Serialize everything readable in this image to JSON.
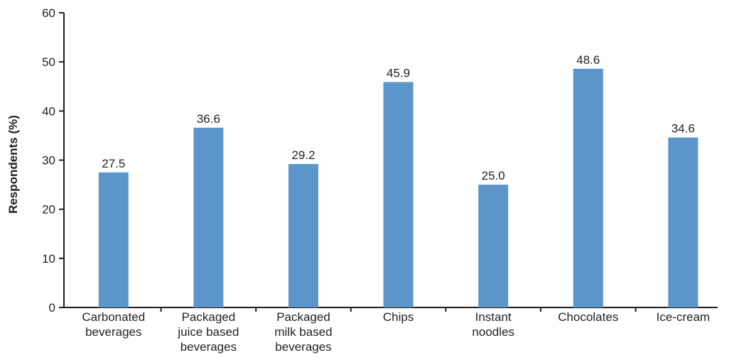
{
  "chart_data": {
    "type": "bar",
    "title": "",
    "xlabel": "",
    "ylabel": "Respondents (%)",
    "ylim": [
      0,
      60
    ],
    "yticks": [
      0,
      10,
      20,
      30,
      40,
      50,
      60
    ],
    "grid": false,
    "bar_color": "#5b95c9",
    "categories": [
      [
        "Carbonated",
        "beverages"
      ],
      [
        "Packaged",
        "juice based",
        "beverages"
      ],
      [
        "Packaged",
        "milk based",
        "beverages"
      ],
      [
        "Chips"
      ],
      [
        "Instant",
        "noodles"
      ],
      [
        "Chocolates"
      ],
      [
        "Ice-cream"
      ]
    ],
    "values": [
      27.5,
      36.6,
      29.2,
      45.9,
      25.0,
      48.6,
      34.6
    ],
    "value_labels": [
      "27.5",
      "36.6",
      "29.2",
      "45.9",
      "25.0",
      "48.6",
      "34.6"
    ]
  }
}
